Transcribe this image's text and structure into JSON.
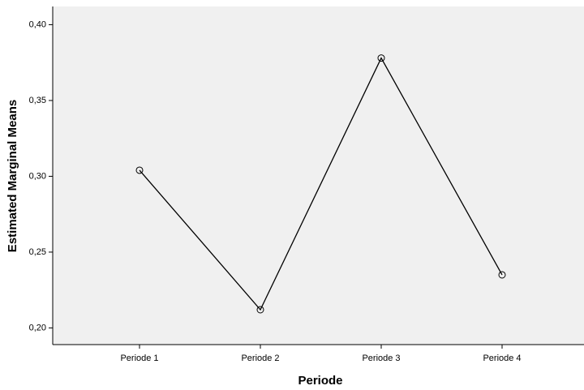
{
  "chart_data": {
    "type": "line",
    "xlabel": "Periode",
    "ylabel": "Estimated Marginal Means",
    "categories": [
      "Periode 1",
      "Periode 2",
      "Periode 3",
      "Periode 4"
    ],
    "values": [
      0.304,
      0.212,
      0.378,
      0.235
    ],
    "color": "#000000",
    "ylim": [
      0.189,
      0.412
    ],
    "yticks": [
      {
        "value": 0.2,
        "label": "0,20"
      },
      {
        "value": 0.25,
        "label": "0,25"
      },
      {
        "value": 0.3,
        "label": "0,30"
      },
      {
        "value": 0.35,
        "label": "0,35"
      },
      {
        "value": 0.4,
        "label": "0,40"
      }
    ],
    "grid": false
  }
}
